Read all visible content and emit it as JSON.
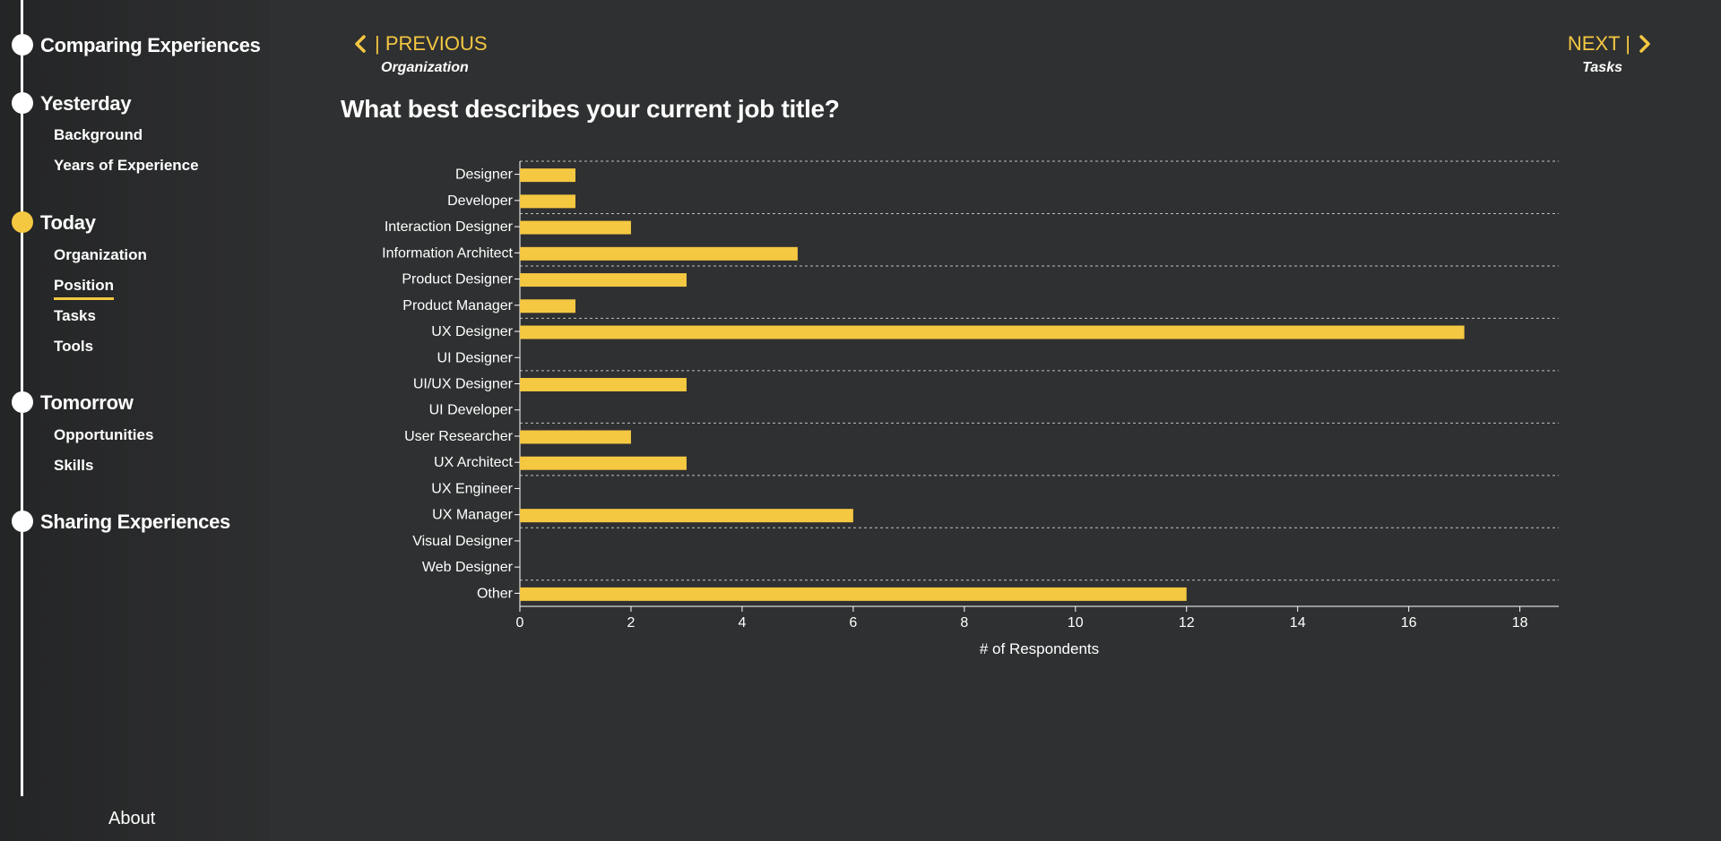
{
  "sidebar": {
    "sections": [
      {
        "label": "Comparing Experiences",
        "active": false,
        "items": []
      },
      {
        "label": "Yesterday",
        "active": false,
        "items": [
          {
            "label": "Background",
            "active": false
          },
          {
            "label": "Years of Experience",
            "active": false
          }
        ]
      },
      {
        "label": "Today",
        "active": true,
        "items": [
          {
            "label": "Organization",
            "active": false
          },
          {
            "label": "Position",
            "active": true
          },
          {
            "label": "Tasks",
            "active": false
          },
          {
            "label": "Tools",
            "active": false
          }
        ]
      },
      {
        "label": "Tomorrow",
        "active": false,
        "items": [
          {
            "label": "Opportunities",
            "active": false
          },
          {
            "label": "Skills",
            "active": false
          }
        ]
      },
      {
        "label": "Sharing Experiences",
        "active": false,
        "items": []
      }
    ],
    "about_label": "About"
  },
  "nav": {
    "prev_label": "| PREVIOUS",
    "prev_sub": "Organization",
    "next_label": "NEXT |",
    "next_sub": "Tasks"
  },
  "page_title": "What best describes your current job title?",
  "colors": {
    "accent": "#f5c842",
    "background": "#2f3031",
    "text": "#ffffff"
  },
  "chart_data": {
    "type": "bar",
    "orientation": "horizontal",
    "title": "",
    "categories": [
      "Designer",
      "Developer",
      "Interaction Designer",
      "Information Architect",
      "Product Designer",
      "Product Manager",
      "UX Designer",
      "UI Designer",
      "UI/UX Designer",
      "UI Developer",
      "User Researcher",
      "UX Architect",
      "UX Engineer",
      "UX Manager",
      "Visual Designer",
      "Web Designer",
      "Other"
    ],
    "values": [
      1,
      1,
      2,
      5,
      3,
      1,
      17,
      0,
      3,
      0,
      2,
      3,
      0,
      6,
      0,
      0,
      12
    ],
    "xlabel": "# of Respondents",
    "ylabel": "",
    "xlim": [
      0,
      18.7
    ],
    "xticks": [
      0,
      2,
      4,
      6,
      8,
      10,
      12,
      14,
      16,
      18
    ],
    "grid": "dashed horizontal lines every two categories",
    "bar_color": "#f5c842"
  }
}
